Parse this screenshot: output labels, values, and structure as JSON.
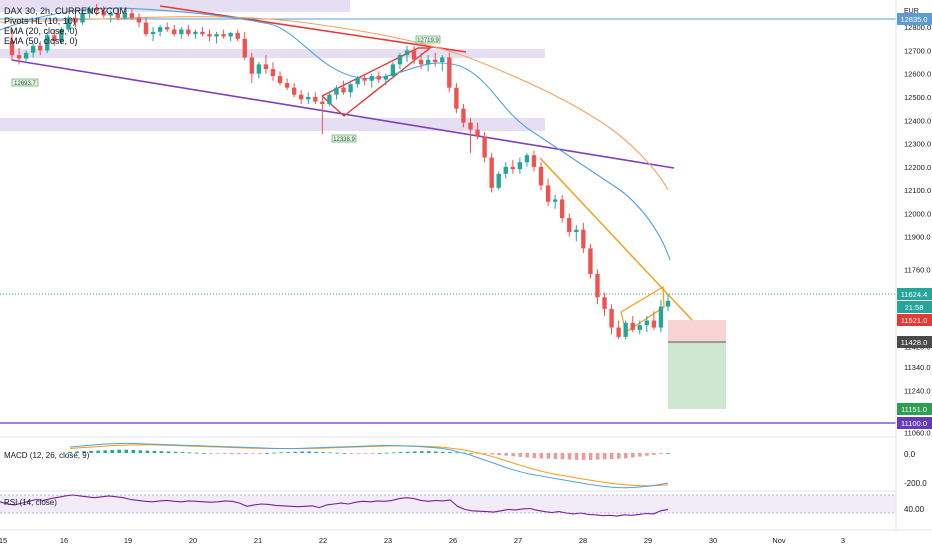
{
  "chart_data": {
    "type": "candlestick",
    "symbol": "DAX 30, 2h, CURRENCYCOM",
    "indicators": [
      "Pivots HL (10, 10)",
      "EMA (20, close, 0)",
      "EMA (50, close, 0)"
    ],
    "currency": "EUR",
    "price_ticks": [
      12800.0,
      12700.0,
      12600.0,
      12500.0,
      12400.0,
      12300.0,
      12200.0,
      12100.0,
      12000.0,
      11900.0,
      11760.0,
      11660.0,
      11428.0,
      11340.0,
      11240.0,
      11151.0,
      11100.0,
      11060.0
    ],
    "date_ticks": [
      "15",
      "16",
      "19",
      "20",
      "21",
      "22",
      "23",
      "26",
      "27",
      "28",
      "29",
      "30",
      "Nov",
      "3"
    ],
    "price_badges": {
      "level_top": "12835.0",
      "last": "11624.4",
      "countdown": "21:58",
      "stop": "11521.0",
      "entry": "11428.0",
      "target": "11151.0",
      "support": "11100.0"
    },
    "pivot_labels": [
      "12693.7",
      "12719.9",
      "12338.9"
    ],
    "candles": [
      {
        "o": 12740,
        "h": 12790,
        "l": 12655,
        "c": 12680
      },
      {
        "o": 12680,
        "h": 12710,
        "l": 12640,
        "c": 12665
      },
      {
        "o": 12665,
        "h": 12700,
        "l": 12655,
        "c": 12690
      },
      {
        "o": 12690,
        "h": 12730,
        "l": 12670,
        "c": 12720
      },
      {
        "o": 12720,
        "h": 12740,
        "l": 12680,
        "c": 12700
      },
      {
        "o": 12700,
        "h": 12780,
        "l": 12690,
        "c": 12765
      },
      {
        "o": 12765,
        "h": 12790,
        "l": 12720,
        "c": 12740
      },
      {
        "o": 12740,
        "h": 12800,
        "l": 12730,
        "c": 12790
      },
      {
        "o": 12790,
        "h": 12850,
        "l": 12780,
        "c": 12840
      },
      {
        "o": 12840,
        "h": 12880,
        "l": 12800,
        "c": 12820
      },
      {
        "o": 12820,
        "h": 12870,
        "l": 12810,
        "c": 12860
      },
      {
        "o": 12860,
        "h": 12890,
        "l": 12840,
        "c": 12880
      },
      {
        "o": 12880,
        "h": 12900,
        "l": 12850,
        "c": 12870
      },
      {
        "o": 12870,
        "h": 12890,
        "l": 12840,
        "c": 12850
      },
      {
        "o": 12850,
        "h": 12870,
        "l": 12820,
        "c": 12860
      },
      {
        "o": 12860,
        "h": 12880,
        "l": 12830,
        "c": 12840
      },
      {
        "o": 12840,
        "h": 12870,
        "l": 12830,
        "c": 12860
      },
      {
        "o": 12860,
        "h": 12880,
        "l": 12830,
        "c": 12840
      },
      {
        "o": 12840,
        "h": 12860,
        "l": 12800,
        "c": 12820
      },
      {
        "o": 12820,
        "h": 12840,
        "l": 12760,
        "c": 12770
      },
      {
        "o": 12770,
        "h": 12800,
        "l": 12740,
        "c": 12780
      },
      {
        "o": 12780,
        "h": 12810,
        "l": 12760,
        "c": 12800
      },
      {
        "o": 12800,
        "h": 12820,
        "l": 12780,
        "c": 12790
      },
      {
        "o": 12790,
        "h": 12810,
        "l": 12760,
        "c": 12770
      },
      {
        "o": 12770,
        "h": 12800,
        "l": 12750,
        "c": 12790
      },
      {
        "o": 12790,
        "h": 12810,
        "l": 12760,
        "c": 12770
      },
      {
        "o": 12770,
        "h": 12790,
        "l": 12750,
        "c": 12780
      },
      {
        "o": 12780,
        "h": 12800,
        "l": 12760,
        "c": 12770
      },
      {
        "o": 12770,
        "h": 12790,
        "l": 12740,
        "c": 12760
      },
      {
        "o": 12760,
        "h": 12780,
        "l": 12730,
        "c": 12770
      },
      {
        "o": 12770,
        "h": 12790,
        "l": 12750,
        "c": 12760
      },
      {
        "o": 12760,
        "h": 12780,
        "l": 12740,
        "c": 12775
      },
      {
        "o": 12775,
        "h": 12790,
        "l": 12740,
        "c": 12750
      },
      {
        "o": 12750,
        "h": 12780,
        "l": 12660,
        "c": 12670
      },
      {
        "o": 12670,
        "h": 12690,
        "l": 12560,
        "c": 12600
      },
      {
        "o": 12600,
        "h": 12650,
        "l": 12580,
        "c": 12640
      },
      {
        "o": 12640,
        "h": 12680,
        "l": 12600,
        "c": 12620
      },
      {
        "o": 12620,
        "h": 12650,
        "l": 12570,
        "c": 12590
      },
      {
        "o": 12590,
        "h": 12610,
        "l": 12550,
        "c": 12560
      },
      {
        "o": 12560,
        "h": 12580,
        "l": 12530,
        "c": 12540
      },
      {
        "o": 12540,
        "h": 12560,
        "l": 12500,
        "c": 12510
      },
      {
        "o": 12510,
        "h": 12530,
        "l": 12470,
        "c": 12490
      },
      {
        "o": 12490,
        "h": 12520,
        "l": 12470,
        "c": 12500
      },
      {
        "o": 12500,
        "h": 12520,
        "l": 12470,
        "c": 12480
      },
      {
        "o": 12480,
        "h": 12500,
        "l": 12340,
        "c": 12470
      },
      {
        "o": 12470,
        "h": 12520,
        "l": 12460,
        "c": 12510
      },
      {
        "o": 12510,
        "h": 12550,
        "l": 12490,
        "c": 12540
      },
      {
        "o": 12540,
        "h": 12570,
        "l": 12510,
        "c": 12520
      },
      {
        "o": 12520,
        "h": 12560,
        "l": 12500,
        "c": 12555
      },
      {
        "o": 12555,
        "h": 12590,
        "l": 12540,
        "c": 12580
      },
      {
        "o": 12580,
        "h": 12600,
        "l": 12550,
        "c": 12570
      },
      {
        "o": 12570,
        "h": 12600,
        "l": 12540,
        "c": 12590
      },
      {
        "o": 12590,
        "h": 12610,
        "l": 12560,
        "c": 12575
      },
      {
        "o": 12575,
        "h": 12600,
        "l": 12550,
        "c": 12590
      },
      {
        "o": 12590,
        "h": 12650,
        "l": 12580,
        "c": 12640
      },
      {
        "o": 12640,
        "h": 12690,
        "l": 12620,
        "c": 12680
      },
      {
        "o": 12680,
        "h": 12720,
        "l": 12650,
        "c": 12700
      },
      {
        "o": 12700,
        "h": 12720,
        "l": 12640,
        "c": 12660
      },
      {
        "o": 12660,
        "h": 12690,
        "l": 12620,
        "c": 12640
      },
      {
        "o": 12640,
        "h": 12680,
        "l": 12610,
        "c": 12660
      },
      {
        "o": 12660,
        "h": 12690,
        "l": 12630,
        "c": 12650
      },
      {
        "o": 12650,
        "h": 12680,
        "l": 12610,
        "c": 12670
      },
      {
        "o": 12670,
        "h": 12690,
        "l": 12520,
        "c": 12540
      },
      {
        "o": 12540,
        "h": 12560,
        "l": 12430,
        "c": 12450
      },
      {
        "o": 12450,
        "h": 12470,
        "l": 12370,
        "c": 12390
      },
      {
        "o": 12390,
        "h": 12410,
        "l": 12260,
        "c": 12360
      },
      {
        "o": 12360,
        "h": 12390,
        "l": 12320,
        "c": 12330
      },
      {
        "o": 12330,
        "h": 12350,
        "l": 12220,
        "c": 12240
      },
      {
        "o": 12240,
        "h": 12260,
        "l": 12090,
        "c": 12110
      },
      {
        "o": 12110,
        "h": 12180,
        "l": 12100,
        "c": 12170
      },
      {
        "o": 12170,
        "h": 12220,
        "l": 12150,
        "c": 12200
      },
      {
        "o": 12200,
        "h": 12230,
        "l": 12170,
        "c": 12190
      },
      {
        "o": 12190,
        "h": 12240,
        "l": 12170,
        "c": 12220
      },
      {
        "o": 12220,
        "h": 12260,
        "l": 12200,
        "c": 12250
      },
      {
        "o": 12250,
        "h": 12270,
        "l": 12180,
        "c": 12200
      },
      {
        "o": 12200,
        "h": 12220,
        "l": 12100,
        "c": 12120
      },
      {
        "o": 12120,
        "h": 12150,
        "l": 12030,
        "c": 12050
      },
      {
        "o": 12050,
        "h": 12080,
        "l": 12020,
        "c": 12060
      },
      {
        "o": 12060,
        "h": 12080,
        "l": 11960,
        "c": 11980
      },
      {
        "o": 11980,
        "h": 12000,
        "l": 11900,
        "c": 11920
      },
      {
        "o": 11920,
        "h": 11950,
        "l": 11880,
        "c": 11930
      },
      {
        "o": 11930,
        "h": 11960,
        "l": 11830,
        "c": 11850
      },
      {
        "o": 11850,
        "h": 11870,
        "l": 11720,
        "c": 11740
      },
      {
        "o": 11740,
        "h": 11760,
        "l": 11610,
        "c": 11640
      },
      {
        "o": 11640,
        "h": 11660,
        "l": 11560,
        "c": 11590
      },
      {
        "o": 11590,
        "h": 11610,
        "l": 11480,
        "c": 11510
      },
      {
        "o": 11510,
        "h": 11540,
        "l": 11460,
        "c": 11470
      },
      {
        "o": 11470,
        "h": 11540,
        "l": 11460,
        "c": 11530
      },
      {
        "o": 11530,
        "h": 11560,
        "l": 11490,
        "c": 11500
      },
      {
        "o": 11500,
        "h": 11540,
        "l": 11480,
        "c": 11520
      },
      {
        "o": 11520,
        "h": 11560,
        "l": 11490,
        "c": 11540
      },
      {
        "o": 11540,
        "h": 11580,
        "l": 11500,
        "c": 11510
      },
      {
        "o": 11510,
        "h": 11630,
        "l": 11490,
        "c": 11600
      },
      {
        "o": 11600,
        "h": 11650,
        "l": 11580,
        "c": 11624.4
      }
    ],
    "macd": {
      "label": "MACD (12, 26, close, 9)",
      "ticks": [
        "0.0",
        "-200.0"
      ],
      "histogram": [
        8,
        10,
        12,
        14,
        16,
        18,
        20,
        22,
        22,
        20,
        18,
        16,
        14,
        12,
        10,
        8,
        6,
        4,
        2,
        0,
        -2,
        -4,
        -6,
        -8,
        -8,
        -6,
        -4,
        -2,
        0,
        2,
        4,
        6,
        8,
        10,
        10,
        8,
        6,
        4,
        2,
        0,
        -2,
        -4,
        -4,
        -2,
        0,
        2,
        4,
        6,
        8,
        10,
        12,
        12,
        10,
        8,
        6,
        4,
        2,
        0,
        -2,
        -6,
        -10,
        -14,
        -18,
        -22,
        -26,
        -30,
        -34,
        -36,
        -38,
        -40,
        -42,
        -44,
        -46,
        -46,
        -46,
        -44,
        -42,
        -40,
        -38,
        -36,
        -30,
        -24,
        -18,
        -12,
        -6,
        0
      ],
      "macd": [
        40,
        45,
        50,
        55,
        60,
        62,
        64,
        64,
        62,
        60,
        58,
        56,
        54,
        52,
        50,
        48,
        46,
        44,
        42,
        40,
        38,
        36,
        34,
        32,
        30,
        30,
        30,
        32,
        34,
        36,
        38,
        40,
        42,
        44,
        46,
        48,
        50,
        50,
        48,
        46,
        44,
        40,
        36,
        30,
        20,
        5,
        -10,
        -30,
        -50,
        -70,
        -90,
        -110,
        -125,
        -140,
        -150,
        -160,
        -170,
        -180,
        -190,
        -200,
        -210,
        -218,
        -225,
        -230,
        -232,
        -230,
        -225,
        -220,
        -210,
        -200
      ],
      "signal": [
        30,
        34,
        38,
        42,
        46,
        50,
        52,
        54,
        54,
        54,
        54,
        52,
        50,
        48,
        46,
        44,
        42,
        40,
        38,
        36,
        34,
        32,
        31,
        30,
        30,
        30,
        30,
        30,
        31,
        32,
        34,
        36,
        38,
        40,
        42,
        44,
        46,
        47,
        48,
        47,
        46,
        44,
        42,
        38,
        32,
        24,
        14,
        2,
        -12,
        -28,
        -46,
        -64,
        -82,
        -100,
        -116,
        -130,
        -142,
        -152,
        -162,
        -172,
        -181,
        -190,
        -198,
        -206,
        -212,
        -216,
        -218,
        -218,
        -216,
        -212
      ]
    },
    "rsi": {
      "label": "RSI (14, close)",
      "tick": "40.00",
      "values": [
        55,
        50,
        48,
        52,
        56,
        60,
        58,
        62,
        65,
        68,
        70,
        68,
        66,
        64,
        66,
        68,
        66,
        64,
        60,
        58,
        56,
        55,
        57,
        58,
        56,
        55,
        57,
        56,
        55,
        54,
        55,
        57,
        56,
        52,
        45,
        48,
        50,
        49,
        47,
        46,
        45,
        44,
        45,
        46,
        42,
        48,
        50,
        52,
        50,
        54,
        56,
        55,
        57,
        56,
        58,
        62,
        64,
        62,
        58,
        56,
        58,
        57,
        59,
        45,
        38,
        35,
        34,
        33,
        32,
        35,
        38,
        37,
        39,
        40,
        36,
        33,
        31,
        33,
        30,
        28,
        30,
        27,
        26,
        24,
        25,
        23,
        26,
        25,
        27,
        29,
        28,
        35,
        38
      ]
    }
  }
}
